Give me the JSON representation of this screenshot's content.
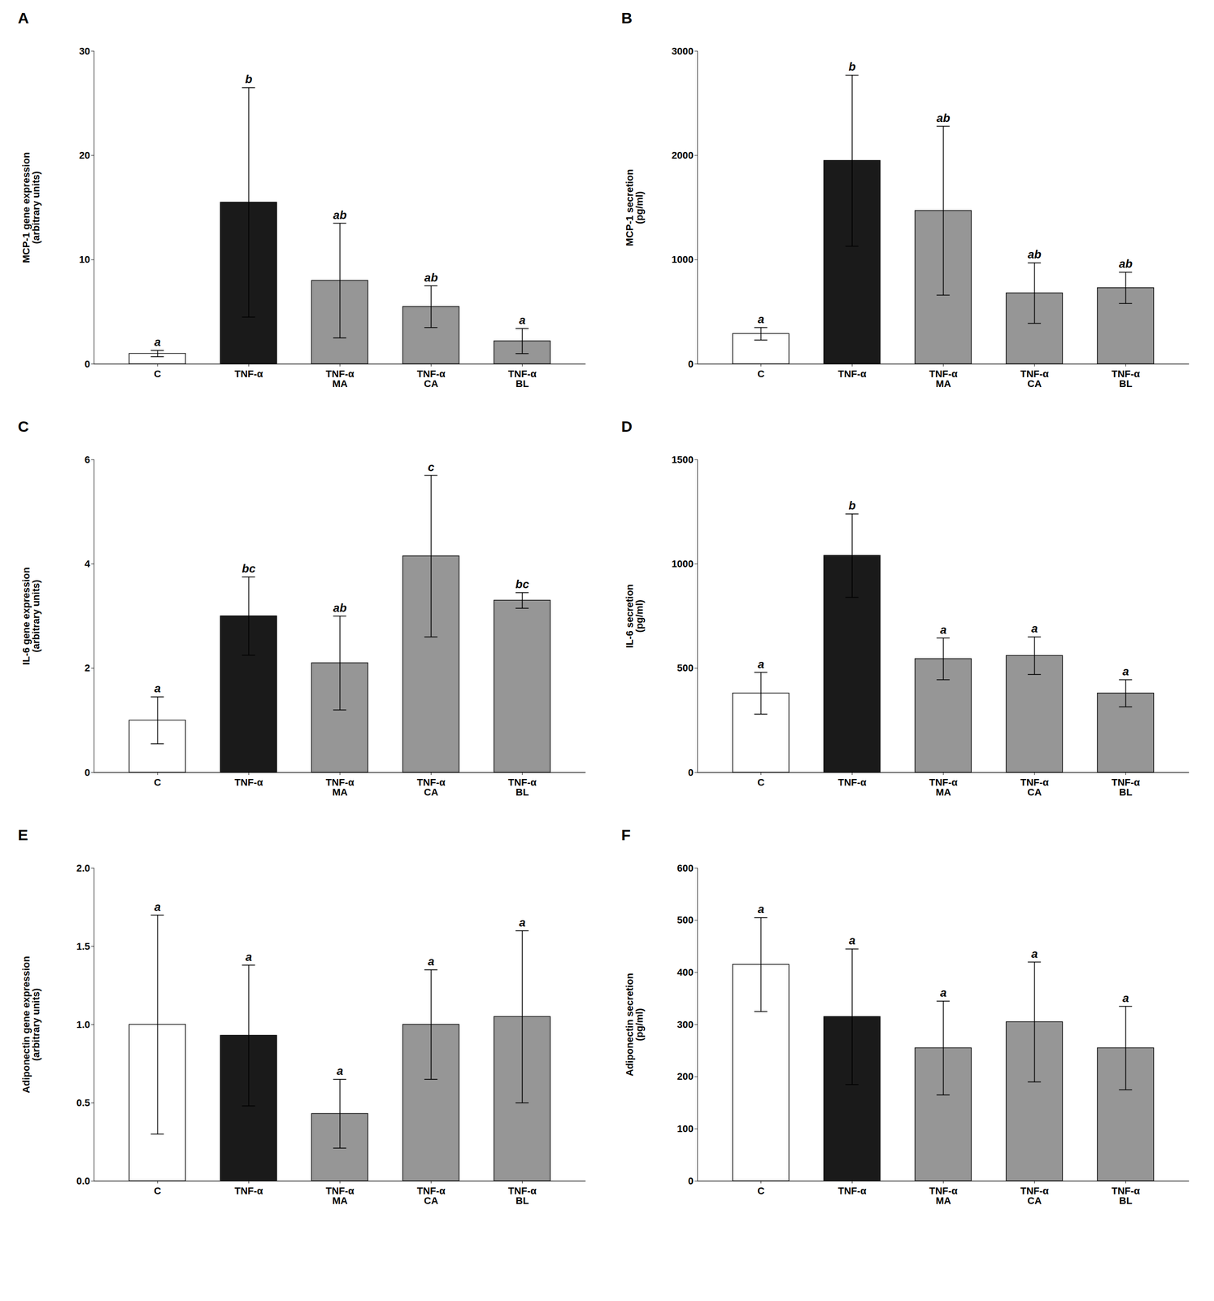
{
  "chart_data": [
    {
      "type": "bar",
      "title": "A",
      "ylabel": "MCP-1 gene expression\n(arbitrary units)",
      "categories": [
        "C",
        "TNF-α",
        "TNF-α\nMA",
        "TNF-α\nCA",
        "TNF-α\nBL"
      ],
      "values": [
        1.0,
        15.5,
        8.0,
        5.5,
        2.2
      ],
      "errors": [
        0.3,
        11.0,
        5.5,
        2.0,
        1.2
      ],
      "colors": [
        "white",
        "#1a1a1a",
        "#969696",
        "#969696",
        "#969696"
      ],
      "annotations": [
        "a",
        "b",
        "ab",
        "ab",
        "a"
      ],
      "ylim": [
        0,
        30
      ],
      "yticks": [
        0,
        10,
        20,
        30
      ]
    },
    {
      "type": "bar",
      "title": "B",
      "ylabel": "MCP-1 secretion\n(pg/ml)",
      "categories": [
        "C",
        "TNF-α",
        "TNF-α\nMA",
        "TNF-α\nCA",
        "TNF-α\nBL"
      ],
      "values": [
        290,
        1950,
        1470,
        680,
        730
      ],
      "errors": [
        60,
        820,
        810,
        290,
        150
      ],
      "colors": [
        "white",
        "#1a1a1a",
        "#969696",
        "#969696",
        "#969696"
      ],
      "annotations": [
        "a",
        "b",
        "ab",
        "ab",
        "ab"
      ],
      "ylim": [
        0,
        3000
      ],
      "yticks": [
        0,
        1000,
        2000,
        3000
      ]
    },
    {
      "type": "bar",
      "title": "C",
      "ylabel": "IL-6 gene expression\n(arbitrary units)",
      "categories": [
        "C",
        "TNF-α",
        "TNF-α\nMA",
        "TNF-α\nCA",
        "TNF-α\nBL"
      ],
      "values": [
        1.0,
        3.0,
        2.1,
        4.15,
        3.3
      ],
      "errors": [
        0.45,
        0.75,
        0.9,
        1.55,
        0.15
      ],
      "colors": [
        "white",
        "#1a1a1a",
        "#969696",
        "#969696",
        "#969696"
      ],
      "annotations": [
        "a",
        "bc",
        "ab",
        "c",
        "bc"
      ],
      "ylim": [
        0,
        6
      ],
      "yticks": [
        0,
        2,
        4,
        6
      ]
    },
    {
      "type": "bar",
      "title": "D",
      "ylabel": "IL-6 secretion\n(pg/ml)",
      "categories": [
        "C",
        "TNF-α",
        "TNF-α\nMA",
        "TNF-α\nCA",
        "TNF-α\nBL"
      ],
      "values": [
        380,
        1040,
        545,
        560,
        380
      ],
      "errors": [
        100,
        200,
        100,
        90,
        65
      ],
      "colors": [
        "white",
        "#1a1a1a",
        "#969696",
        "#969696",
        "#969696"
      ],
      "annotations": [
        "a",
        "b",
        "a",
        "a",
        "a"
      ],
      "ylim": [
        0,
        1500
      ],
      "yticks": [
        0,
        500,
        1000,
        1500
      ]
    },
    {
      "type": "bar",
      "title": "E",
      "ylabel": "Adiponectin gene expression\n(arbitrary units)",
      "categories": [
        "C",
        "TNF-α",
        "TNF-α\nMA",
        "TNF-α\nCA",
        "TNF-α\nBL"
      ],
      "values": [
        1.0,
        0.93,
        0.43,
        1.0,
        1.05
      ],
      "errors": [
        0.7,
        0.45,
        0.22,
        0.35,
        0.55
      ],
      "colors": [
        "white",
        "#1a1a1a",
        "#969696",
        "#969696",
        "#969696"
      ],
      "annotations": [
        "a",
        "a",
        "a",
        "a",
        "a"
      ],
      "ylim": [
        0,
        2.0
      ],
      "yticks": [
        {
          "value": 0,
          "label": "0.0"
        },
        0.5,
        {
          "value": 1,
          "label": "1.0"
        },
        1.5,
        {
          "value": 2,
          "label": "2.0"
        }
      ]
    },
    {
      "type": "bar",
      "title": "F",
      "ylabel": "Adiponectin secretion\n(pg/ml)",
      "categories": [
        "C",
        "TNF-α",
        "TNF-α\nMA",
        "TNF-α\nCA",
        "TNF-α\nBL"
      ],
      "values": [
        415,
        315,
        255,
        305,
        255
      ],
      "errors": [
        90,
        130,
        90,
        115,
        80
      ],
      "colors": [
        "white",
        "#1a1a1a",
        "#969696",
        "#969696",
        "#969696"
      ],
      "annotations": [
        "a",
        "a",
        "a",
        "a",
        "a"
      ],
      "ylim": [
        0,
        600
      ],
      "yticks": [
        0,
        100,
        200,
        300,
        400,
        500,
        600
      ]
    }
  ]
}
